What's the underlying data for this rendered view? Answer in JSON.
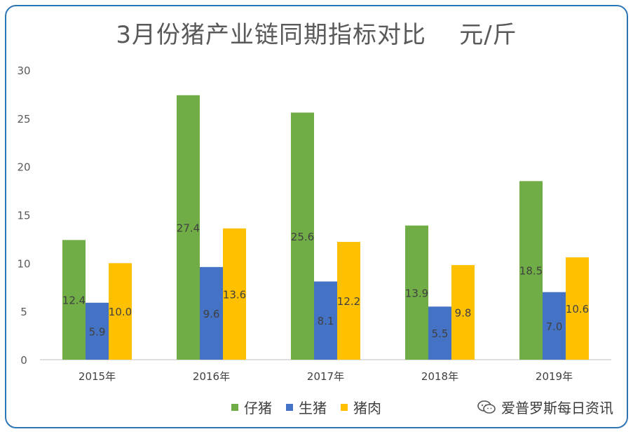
{
  "chart_data": {
    "type": "bar",
    "title": "3月份猪产业链同期指标对比    元/斤",
    "categories": [
      "2015年",
      "2016年",
      "2017年",
      "2018年",
      "2019年"
    ],
    "series": [
      {
        "name": "仔猪",
        "color": "#70ad47",
        "values": [
          12.4,
          27.4,
          25.6,
          13.9,
          18.5
        ],
        "labels": [
          "12.4",
          "27.4",
          "25.6",
          "13.9",
          "18.5"
        ]
      },
      {
        "name": "生猪",
        "color": "#4472c4",
        "values": [
          5.9,
          9.6,
          8.1,
          5.5,
          7.0
        ],
        "labels": [
          "5.9",
          "9.6",
          "8.1",
          "5.5",
          "7.0"
        ]
      },
      {
        "name": "猪肉",
        "color": "#ffc000",
        "values": [
          10.0,
          13.6,
          12.2,
          9.8,
          10.6
        ],
        "labels": [
          "10.0",
          "13.6",
          "12.2",
          "9.8",
          "10.6"
        ]
      }
    ],
    "ylim": [
      0,
      30
    ],
    "yticks": [
      "0",
      "5",
      "10",
      "15",
      "20",
      "25",
      "30"
    ],
    "xlabel": "",
    "ylabel": "",
    "legend": "bottom"
  },
  "watermark": {
    "text": "爱普罗斯每日资讯",
    "icon": "wechat-icon"
  }
}
